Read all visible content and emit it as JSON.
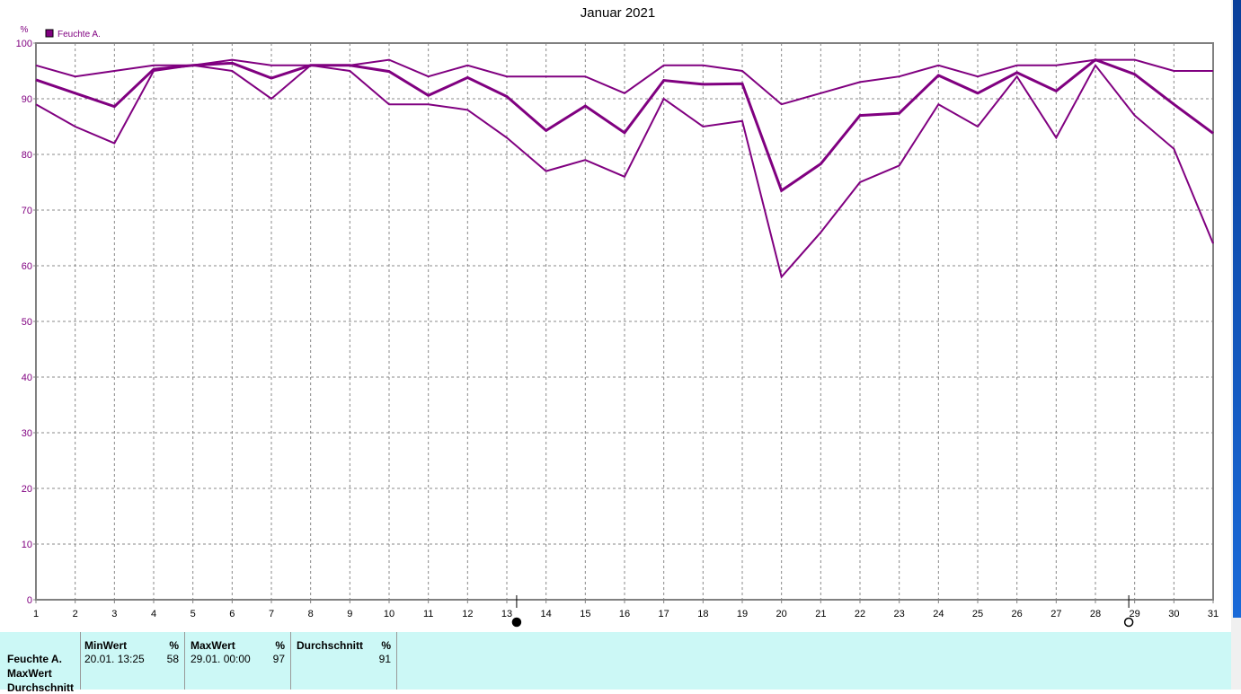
{
  "chart_data": {
    "type": "line",
    "title": "Januar 2021",
    "ylabel": "%",
    "legend": {
      "label": "Feuchte A.",
      "placement": "top-left",
      "color": "#800080"
    },
    "x": [
      1,
      2,
      3,
      4,
      5,
      6,
      7,
      8,
      9,
      10,
      11,
      12,
      13,
      14,
      15,
      16,
      17,
      18,
      19,
      20,
      21,
      22,
      23,
      24,
      25,
      26,
      27,
      28,
      29,
      30,
      31
    ],
    "xlim": [
      1,
      31
    ],
    "ylim": [
      0,
      100
    ],
    "yticks": [
      0,
      10,
      20,
      30,
      40,
      50,
      60,
      70,
      80,
      90,
      100
    ],
    "grid": true,
    "series": [
      {
        "values": [
          96,
          94,
          95,
          96,
          96,
          97,
          96,
          96,
          96,
          97,
          94,
          96,
          94,
          94,
          94,
          91,
          96,
          96,
          95,
          89,
          91,
          93,
          94,
          96,
          94,
          96,
          96,
          97,
          97,
          95,
          95
        ]
      },
      {
        "values": [
          93.4,
          91,
          88.6,
          95.3,
          96,
          96.4,
          93.7,
          96,
          96,
          94.9,
          90.6,
          93.8,
          90.4,
          84.3,
          88.7,
          83.9,
          93.3,
          92.6,
          92.7,
          73.5,
          78.3,
          87,
          87.4,
          94.2,
          91,
          94.7,
          91.4,
          97,
          94.4,
          89,
          83.8
        ]
      },
      {
        "values": [
          89,
          85,
          82,
          95,
          96,
          95,
          90,
          96,
          95,
          89,
          89,
          88,
          83,
          77,
          79,
          76,
          90,
          85,
          86,
          58,
          66,
          75,
          78,
          89,
          85,
          94,
          83,
          96,
          87,
          81,
          64
        ]
      }
    ],
    "markers": [
      {
        "x": 13.25,
        "type": "filled-circle"
      },
      {
        "x": 28.85,
        "type": "open-circle"
      }
    ]
  },
  "panel": {
    "row_labels": [
      "Feuchte A.",
      "MaxWert",
      "Durchschnitt"
    ],
    "min": {
      "header": "MinWert",
      "unit": "%",
      "date": "20.01.  13:25",
      "value": "58"
    },
    "max": {
      "header": "MaxWert",
      "unit": "%",
      "date": "29.01.  00:00",
      "value": "97"
    },
    "avg": {
      "header": "Durchschnitt",
      "unit": "%",
      "value": "91"
    }
  }
}
